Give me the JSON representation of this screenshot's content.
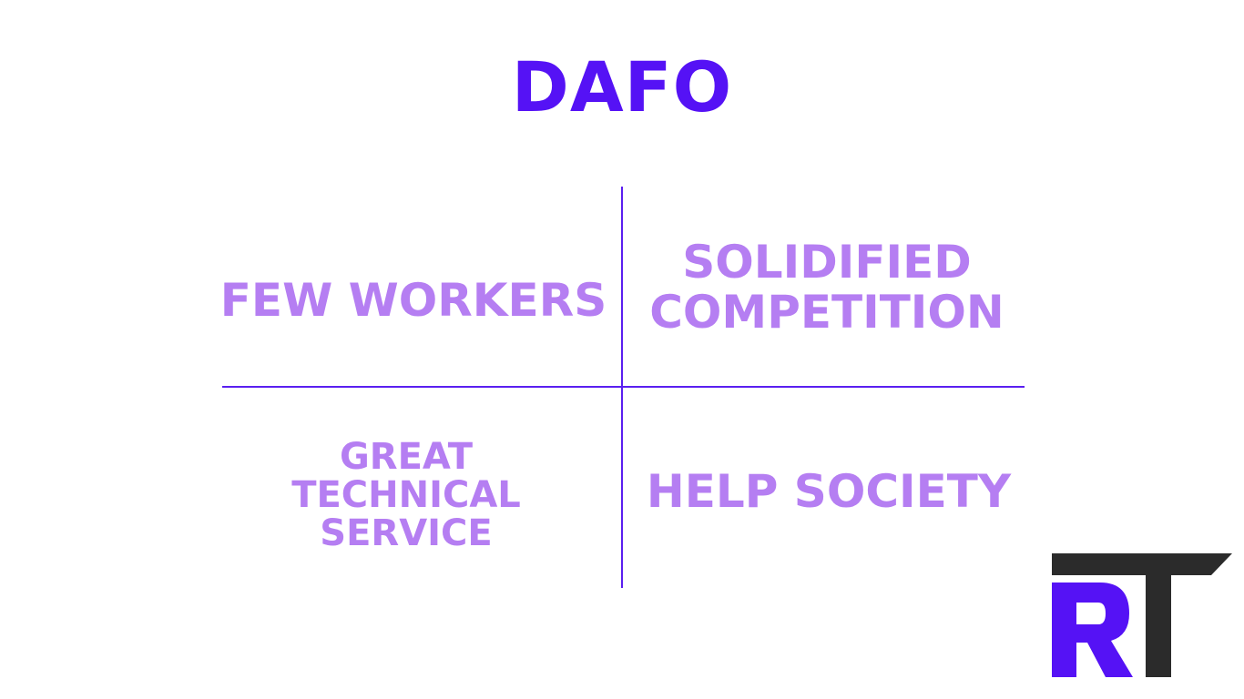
{
  "title": "DAFO",
  "quadrants": {
    "top_left": "FEW WORKERS",
    "top_right": "SOLIDIFIED COMPETITION",
    "bottom_left": "GREAT TECHNICAL SERVICE",
    "bottom_right": "HELP SOCIETY"
  },
  "logo": {
    "text": "RT",
    "icon": "rt-logo-icon"
  },
  "colors": {
    "title": "#5512f5",
    "divider": "#5a1ff0",
    "quadrant_text": "#b57ef2",
    "logo_r": "#5512f5",
    "logo_t": "#2b2b2b"
  }
}
